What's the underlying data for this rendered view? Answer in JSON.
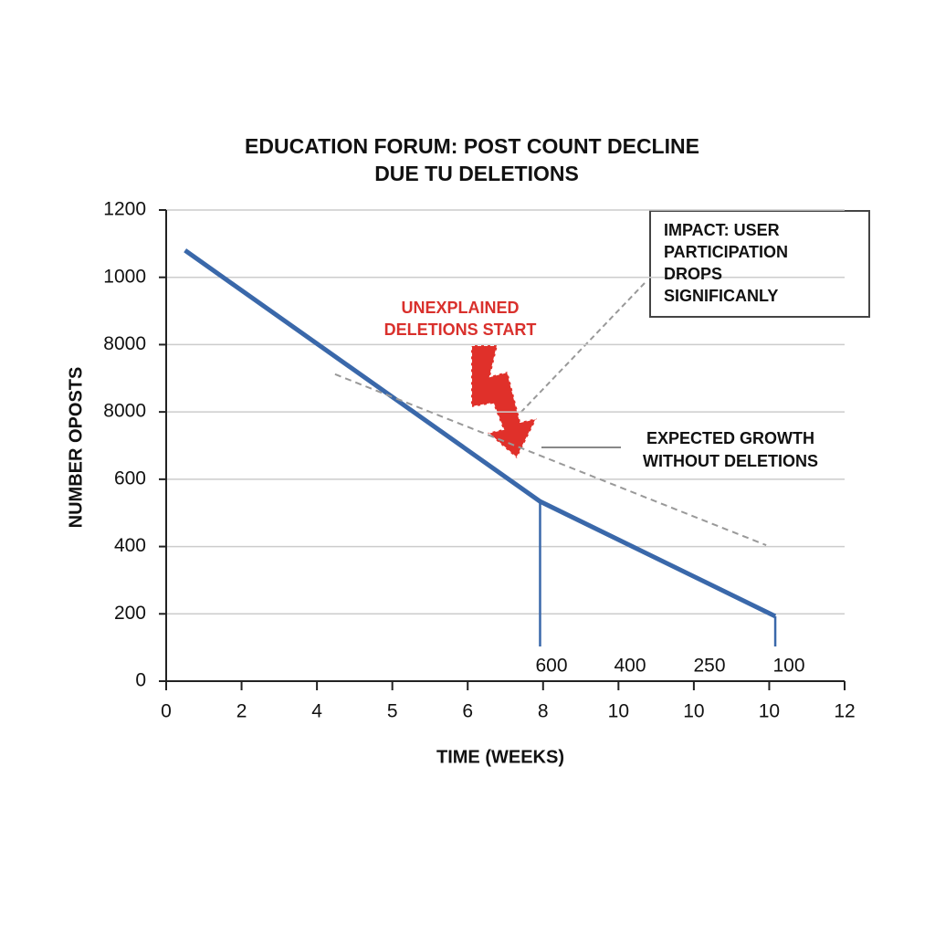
{
  "chart_data": {
    "type": "line",
    "title": [
      "EDUCATION FORUM: POST COUNT DECLINE",
      "DUE TU DELETIONS"
    ],
    "x_label": "TIME (WEEKS)",
    "y_label": "NUMBER OPOSTS",
    "xlim": [
      0,
      9
    ],
    "xticks": [
      0,
      {
        "value": 1,
        "label": "2"
      },
      {
        "value": 2,
        "label": "4"
      },
      {
        "value": 3,
        "label": "5"
      },
      {
        "value": 4,
        "label": "6"
      },
      {
        "value": 5,
        "label": "8"
      },
      {
        "value": 6,
        "label": "10"
      },
      {
        "value": 7,
        "label": "10"
      },
      {
        "value": 8,
        "label": "10"
      },
      {
        "value": 9,
        "label": "12"
      }
    ],
    "ylim": [
      0,
      1400
    ],
    "yticks": [
      0,
      200,
      400,
      600,
      {
        "value": 800,
        "label": "8000"
      },
      {
        "value": 1000,
        "label": "8000"
      },
      {
        "value": 1200,
        "label": "1000"
      },
      {
        "value": 1400,
        "label": "1200"
      }
    ],
    "grid": true,
    "series": [
      {
        "color": "#3a68aa",
        "x": [
          0.25,
          4.96,
          8.08
        ],
        "values": [
          1280,
          534,
          193
        ]
      },
      {
        "color": "#999999",
        "dashed": true,
        "x": [
          2.24,
          7.96
        ],
        "values": [
          912,
          404
        ]
      }
    ],
    "point_labels": [
      "600",
      "400",
      "250",
      "100"
    ],
    "annotations": [
      {
        "lines": [
          "IMPACT: USER",
          "PARTICIPATION",
          "DROPS",
          "SIGNIFICANLY"
        ]
      },
      {
        "lines": [
          "UNEXPLAINED",
          "DELETIONS START"
        ],
        "color": "#d9302c"
      },
      {
        "lines": [
          "EXPECTED GROWTH",
          "WITHOUT DELETIONS"
        ]
      }
    ]
  }
}
